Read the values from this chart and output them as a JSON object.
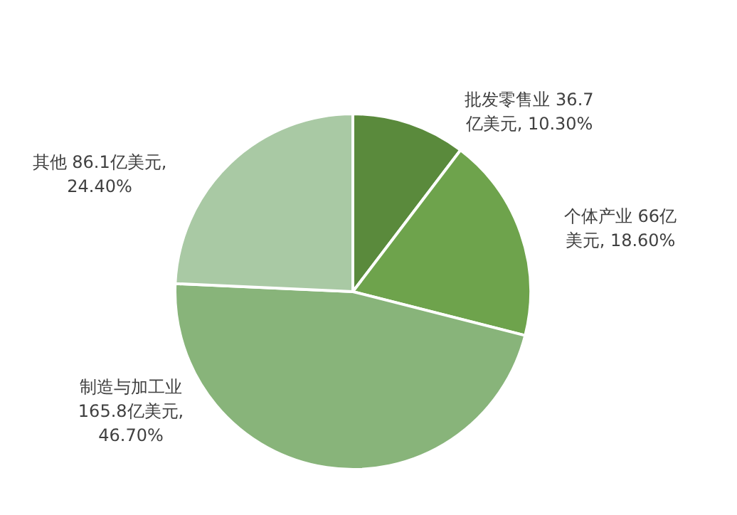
{
  "chart_data": {
    "type": "pie",
    "categories": [
      "批发零售业",
      "个体产业",
      "制造与加工业",
      "其他"
    ],
    "values": [
      36.7,
      66,
      165.8,
      86.1
    ],
    "colors": [
      "#5a8a3c",
      "#6ea34c",
      "#88b47a",
      "#a9c9a4"
    ],
    "value_labels": [
      "36.7亿美元, 10.30%",
      "66亿美元, 18.60%",
      "165.8亿美元, 46.70%",
      "86.1亿美元, 24.40%"
    ]
  }
}
